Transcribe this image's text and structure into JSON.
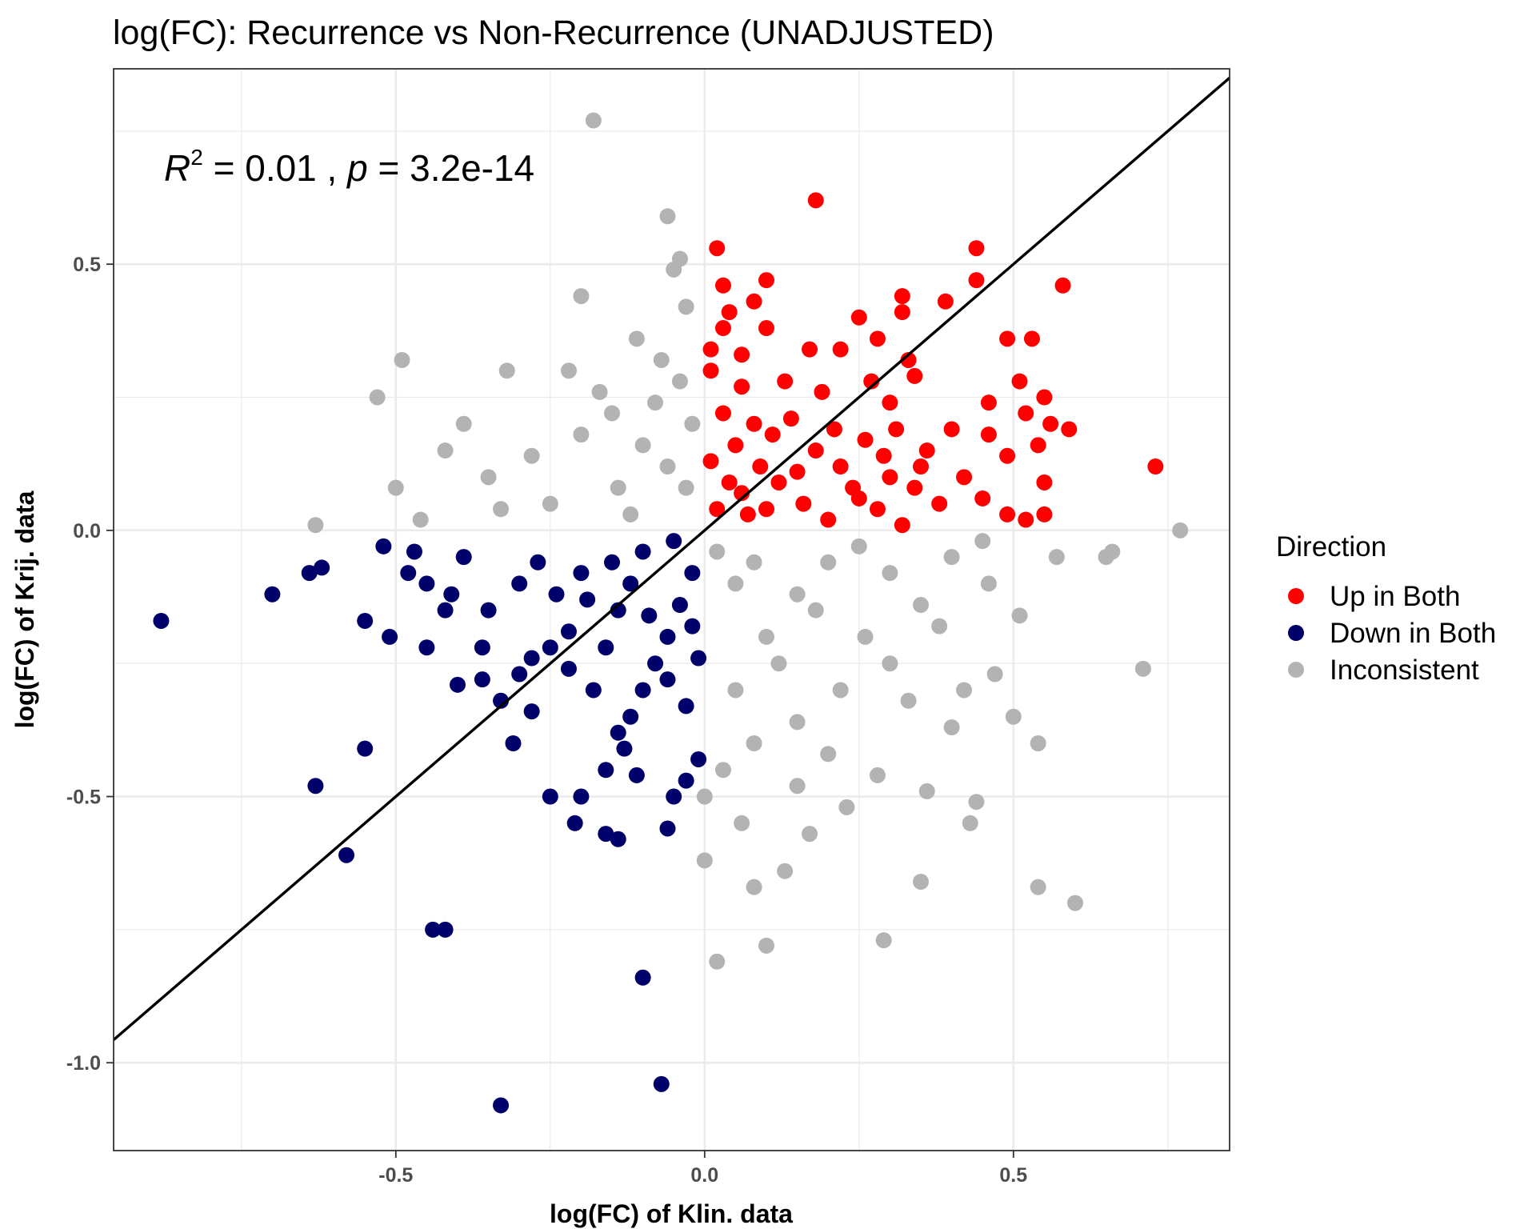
{
  "chart_data": {
    "type": "scatter",
    "title": "log(FC): Recurrence vs Non-Recurrence (UNADJUSTED)",
    "xlabel": "log(FC) of Klin. data",
    "ylabel": "log(FC) of Krij. data",
    "xlim": [
      -0.957,
      0.85
    ],
    "ylim": [
      -1.165,
      0.867
    ],
    "x_ticks": [
      -0.5,
      0.0,
      0.5
    ],
    "x_tick_labels": [
      "-0.5",
      "0.0",
      "0.5"
    ],
    "y_ticks": [
      -1.0,
      -0.5,
      0.0,
      0.5
    ],
    "y_tick_labels": [
      "-1.0",
      "-0.5",
      "0.0",
      "0.5"
    ],
    "grid": true,
    "annotation": {
      "r_symbol": "R",
      "r_exponent": "2",
      "r_value": " = 0.01 , ",
      "p_symbol": "p",
      "p_value": " = 3.2e-14"
    },
    "reference_line": {
      "slope": 1,
      "intercept": 0,
      "color": "#000000"
    },
    "legend": {
      "title": "Direction",
      "position": "right",
      "entries": [
        {
          "label": "Up in Both",
          "color": "#ff0000"
        },
        {
          "label": "Down in Both",
          "color": "#00006b"
        },
        {
          "label": "Inconsistent",
          "color": "#b3b3b3"
        }
      ]
    },
    "series": [
      {
        "name": "Up in Both",
        "color": "#ff0000",
        "points": [
          [
            0.18,
            0.62
          ],
          [
            0.02,
            0.53
          ],
          [
            0.44,
            0.53
          ],
          [
            0.58,
            0.46
          ],
          [
            0.44,
            0.47
          ],
          [
            0.03,
            0.46
          ],
          [
            0.1,
            0.47
          ],
          [
            0.32,
            0.44
          ],
          [
            0.39,
            0.43
          ],
          [
            0.08,
            0.43
          ],
          [
            0.04,
            0.41
          ],
          [
            0.32,
            0.41
          ],
          [
            0.25,
            0.4
          ],
          [
            0.03,
            0.38
          ],
          [
            0.1,
            0.38
          ],
          [
            0.49,
            0.36
          ],
          [
            0.53,
            0.36
          ],
          [
            0.28,
            0.36
          ],
          [
            0.01,
            0.34
          ],
          [
            0.17,
            0.34
          ],
          [
            0.22,
            0.34
          ],
          [
            0.06,
            0.33
          ],
          [
            0.33,
            0.32
          ],
          [
            0.51,
            0.28
          ],
          [
            0.55,
            0.25
          ],
          [
            0.46,
            0.24
          ],
          [
            0.52,
            0.22
          ],
          [
            0.56,
            0.2
          ],
          [
            0.59,
            0.19
          ],
          [
            0.73,
            0.12
          ],
          [
            0.54,
            0.16
          ],
          [
            0.49,
            0.14
          ],
          [
            0.55,
            0.03
          ],
          [
            0.52,
            0.02
          ],
          [
            0.49,
            0.03
          ],
          [
            0.55,
            0.09
          ],
          [
            0.45,
            0.06
          ],
          [
            0.38,
            0.05
          ],
          [
            0.42,
            0.1
          ],
          [
            0.36,
            0.15
          ],
          [
            0.4,
            0.19
          ],
          [
            0.46,
            0.18
          ],
          [
            0.3,
            0.24
          ],
          [
            0.27,
            0.28
          ],
          [
            0.34,
            0.29
          ],
          [
            0.19,
            0.26
          ],
          [
            0.13,
            0.28
          ],
          [
            0.06,
            0.27
          ],
          [
            0.01,
            0.3
          ],
          [
            0.03,
            0.22
          ],
          [
            0.05,
            0.16
          ],
          [
            0.09,
            0.12
          ],
          [
            0.12,
            0.09
          ],
          [
            0.16,
            0.05
          ],
          [
            0.2,
            0.02
          ],
          [
            0.24,
            0.08
          ],
          [
            0.28,
            0.04
          ],
          [
            0.32,
            0.01
          ],
          [
            0.02,
            0.04
          ],
          [
            0.04,
            0.09
          ],
          [
            0.07,
            0.03
          ],
          [
            0.11,
            0.18
          ],
          [
            0.14,
            0.21
          ],
          [
            0.18,
            0.15
          ],
          [
            0.22,
            0.12
          ],
          [
            0.26,
            0.17
          ],
          [
            0.3,
            0.1
          ],
          [
            0.34,
            0.08
          ],
          [
            0.08,
            0.2
          ],
          [
            0.15,
            0.11
          ],
          [
            0.21,
            0.19
          ],
          [
            0.25,
            0.06
          ],
          [
            0.29,
            0.14
          ],
          [
            0.01,
            0.13
          ],
          [
            0.06,
            0.07
          ],
          [
            0.1,
            0.04
          ],
          [
            0.35,
            0.12
          ],
          [
            0.31,
            0.19
          ]
        ]
      },
      {
        "name": "Down in Both",
        "color": "#00006b",
        "points": [
          [
            -0.88,
            -0.17
          ],
          [
            -0.7,
            -0.12
          ],
          [
            -0.64,
            -0.08
          ],
          [
            -0.62,
            -0.07
          ],
          [
            -0.55,
            -0.17
          ],
          [
            -0.51,
            -0.2
          ],
          [
            -0.52,
            -0.03
          ],
          [
            -0.48,
            -0.08
          ],
          [
            -0.45,
            -0.1
          ],
          [
            -0.42,
            -0.15
          ],
          [
            -0.39,
            -0.05
          ],
          [
            -0.36,
            -0.28
          ],
          [
            -0.33,
            -0.32
          ],
          [
            -0.3,
            -0.27
          ],
          [
            -0.28,
            -0.24
          ],
          [
            -0.25,
            -0.22
          ],
          [
            -0.22,
            -0.19
          ],
          [
            -0.55,
            -0.41
          ],
          [
            -0.63,
            -0.48
          ],
          [
            -0.58,
            -0.61
          ],
          [
            -0.44,
            -0.75
          ],
          [
            -0.42,
            -0.75
          ],
          [
            -0.1,
            -0.84
          ],
          [
            -0.07,
            -1.04
          ],
          [
            -0.33,
            -1.08
          ],
          [
            -0.25,
            -0.5
          ],
          [
            -0.2,
            -0.5
          ],
          [
            -0.21,
            -0.55
          ],
          [
            -0.16,
            -0.57
          ],
          [
            -0.14,
            -0.58
          ],
          [
            -0.06,
            -0.56
          ],
          [
            -0.05,
            -0.5
          ],
          [
            -0.03,
            -0.47
          ],
          [
            -0.01,
            -0.43
          ],
          [
            -0.16,
            -0.45
          ],
          [
            -0.13,
            -0.41
          ],
          [
            -0.31,
            -0.4
          ],
          [
            -0.28,
            -0.34
          ],
          [
            -0.4,
            -0.29
          ],
          [
            -0.45,
            -0.22
          ],
          [
            -0.35,
            -0.15
          ],
          [
            -0.3,
            -0.1
          ],
          [
            -0.2,
            -0.08
          ],
          [
            -0.15,
            -0.06
          ],
          [
            -0.1,
            -0.04
          ],
          [
            -0.05,
            -0.02
          ],
          [
            -0.02,
            -0.08
          ],
          [
            -0.04,
            -0.14
          ],
          [
            -0.06,
            -0.2
          ],
          [
            -0.08,
            -0.25
          ],
          [
            -0.1,
            -0.3
          ],
          [
            -0.12,
            -0.35
          ],
          [
            -0.14,
            -0.38
          ],
          [
            -0.18,
            -0.3
          ],
          [
            -0.16,
            -0.22
          ],
          [
            -0.14,
            -0.15
          ],
          [
            -0.12,
            -0.1
          ],
          [
            -0.02,
            -0.18
          ],
          [
            -0.01,
            -0.24
          ],
          [
            -0.24,
            -0.12
          ],
          [
            -0.27,
            -0.06
          ],
          [
            -0.19,
            -0.13
          ],
          [
            -0.09,
            -0.16
          ],
          [
            -0.22,
            -0.26
          ],
          [
            -0.06,
            -0.28
          ],
          [
            -0.03,
            -0.33
          ],
          [
            -0.36,
            -0.22
          ],
          [
            -0.41,
            -0.12
          ],
          [
            -0.47,
            -0.04
          ],
          [
            -0.11,
            -0.46
          ]
        ]
      },
      {
        "name": "Inconsistent",
        "color": "#b3b3b3",
        "points": [
          [
            -0.18,
            0.77
          ],
          [
            -0.06,
            0.59
          ],
          [
            -0.04,
            0.51
          ],
          [
            -0.05,
            0.49
          ],
          [
            -0.2,
            0.44
          ],
          [
            -0.03,
            0.42
          ],
          [
            -0.49,
            0.32
          ],
          [
            -0.32,
            0.3
          ],
          [
            -0.22,
            0.3
          ],
          [
            -0.53,
            0.25
          ],
          [
            -0.17,
            0.26
          ],
          [
            -0.11,
            0.36
          ],
          [
            -0.07,
            0.32
          ],
          [
            -0.39,
            0.2
          ],
          [
            -0.42,
            0.15
          ],
          [
            -0.5,
            0.08
          ],
          [
            -0.63,
            0.01
          ],
          [
            -0.46,
            0.02
          ],
          [
            -0.35,
            0.1
          ],
          [
            -0.28,
            0.14
          ],
          [
            -0.2,
            0.18
          ],
          [
            -0.15,
            0.22
          ],
          [
            -0.1,
            0.16
          ],
          [
            -0.06,
            0.12
          ],
          [
            -0.03,
            0.08
          ],
          [
            -0.02,
            0.2
          ],
          [
            -0.25,
            0.05
          ],
          [
            -0.33,
            0.04
          ],
          [
            -0.12,
            0.03
          ],
          [
            -0.08,
            0.24
          ],
          [
            -0.04,
            0.28
          ],
          [
            -0.14,
            0.08
          ],
          [
            0.77,
            0.0
          ],
          [
            0.71,
            -0.26
          ],
          [
            0.66,
            -0.04
          ],
          [
            0.65,
            -0.05
          ],
          [
            0.6,
            -0.7
          ],
          [
            0.54,
            -0.67
          ],
          [
            0.54,
            -0.4
          ],
          [
            0.5,
            -0.35
          ],
          [
            0.44,
            -0.51
          ],
          [
            0.43,
            -0.55
          ],
          [
            0.35,
            -0.66
          ],
          [
            0.29,
            -0.77
          ],
          [
            0.1,
            -0.78
          ],
          [
            0.02,
            -0.81
          ],
          [
            0.0,
            -0.62
          ],
          [
            0.08,
            -0.67
          ],
          [
            0.13,
            -0.64
          ],
          [
            0.17,
            -0.57
          ],
          [
            0.23,
            -0.52
          ],
          [
            0.28,
            -0.46
          ],
          [
            0.36,
            -0.49
          ],
          [
            0.4,
            -0.37
          ],
          [
            0.47,
            -0.27
          ],
          [
            0.51,
            -0.16
          ],
          [
            0.57,
            -0.05
          ],
          [
            0.46,
            -0.1
          ],
          [
            0.38,
            -0.18
          ],
          [
            0.3,
            -0.25
          ],
          [
            0.22,
            -0.3
          ],
          [
            0.15,
            -0.36
          ],
          [
            0.08,
            -0.4
          ],
          [
            0.03,
            -0.45
          ],
          [
            0.0,
            -0.5
          ],
          [
            0.05,
            -0.3
          ],
          [
            0.1,
            -0.2
          ],
          [
            0.15,
            -0.12
          ],
          [
            0.2,
            -0.06
          ],
          [
            0.25,
            -0.03
          ],
          [
            0.3,
            -0.08
          ],
          [
            0.35,
            -0.14
          ],
          [
            0.4,
            -0.05
          ],
          [
            0.45,
            -0.02
          ],
          [
            0.05,
            -0.1
          ],
          [
            0.12,
            -0.25
          ],
          [
            0.18,
            -0.15
          ],
          [
            0.26,
            -0.2
          ],
          [
            0.33,
            -0.32
          ],
          [
            0.2,
            -0.42
          ],
          [
            0.06,
            -0.55
          ],
          [
            0.15,
            -0.48
          ],
          [
            0.42,
            -0.3
          ],
          [
            0.02,
            -0.04
          ],
          [
            0.08,
            -0.06
          ]
        ]
      }
    ]
  }
}
